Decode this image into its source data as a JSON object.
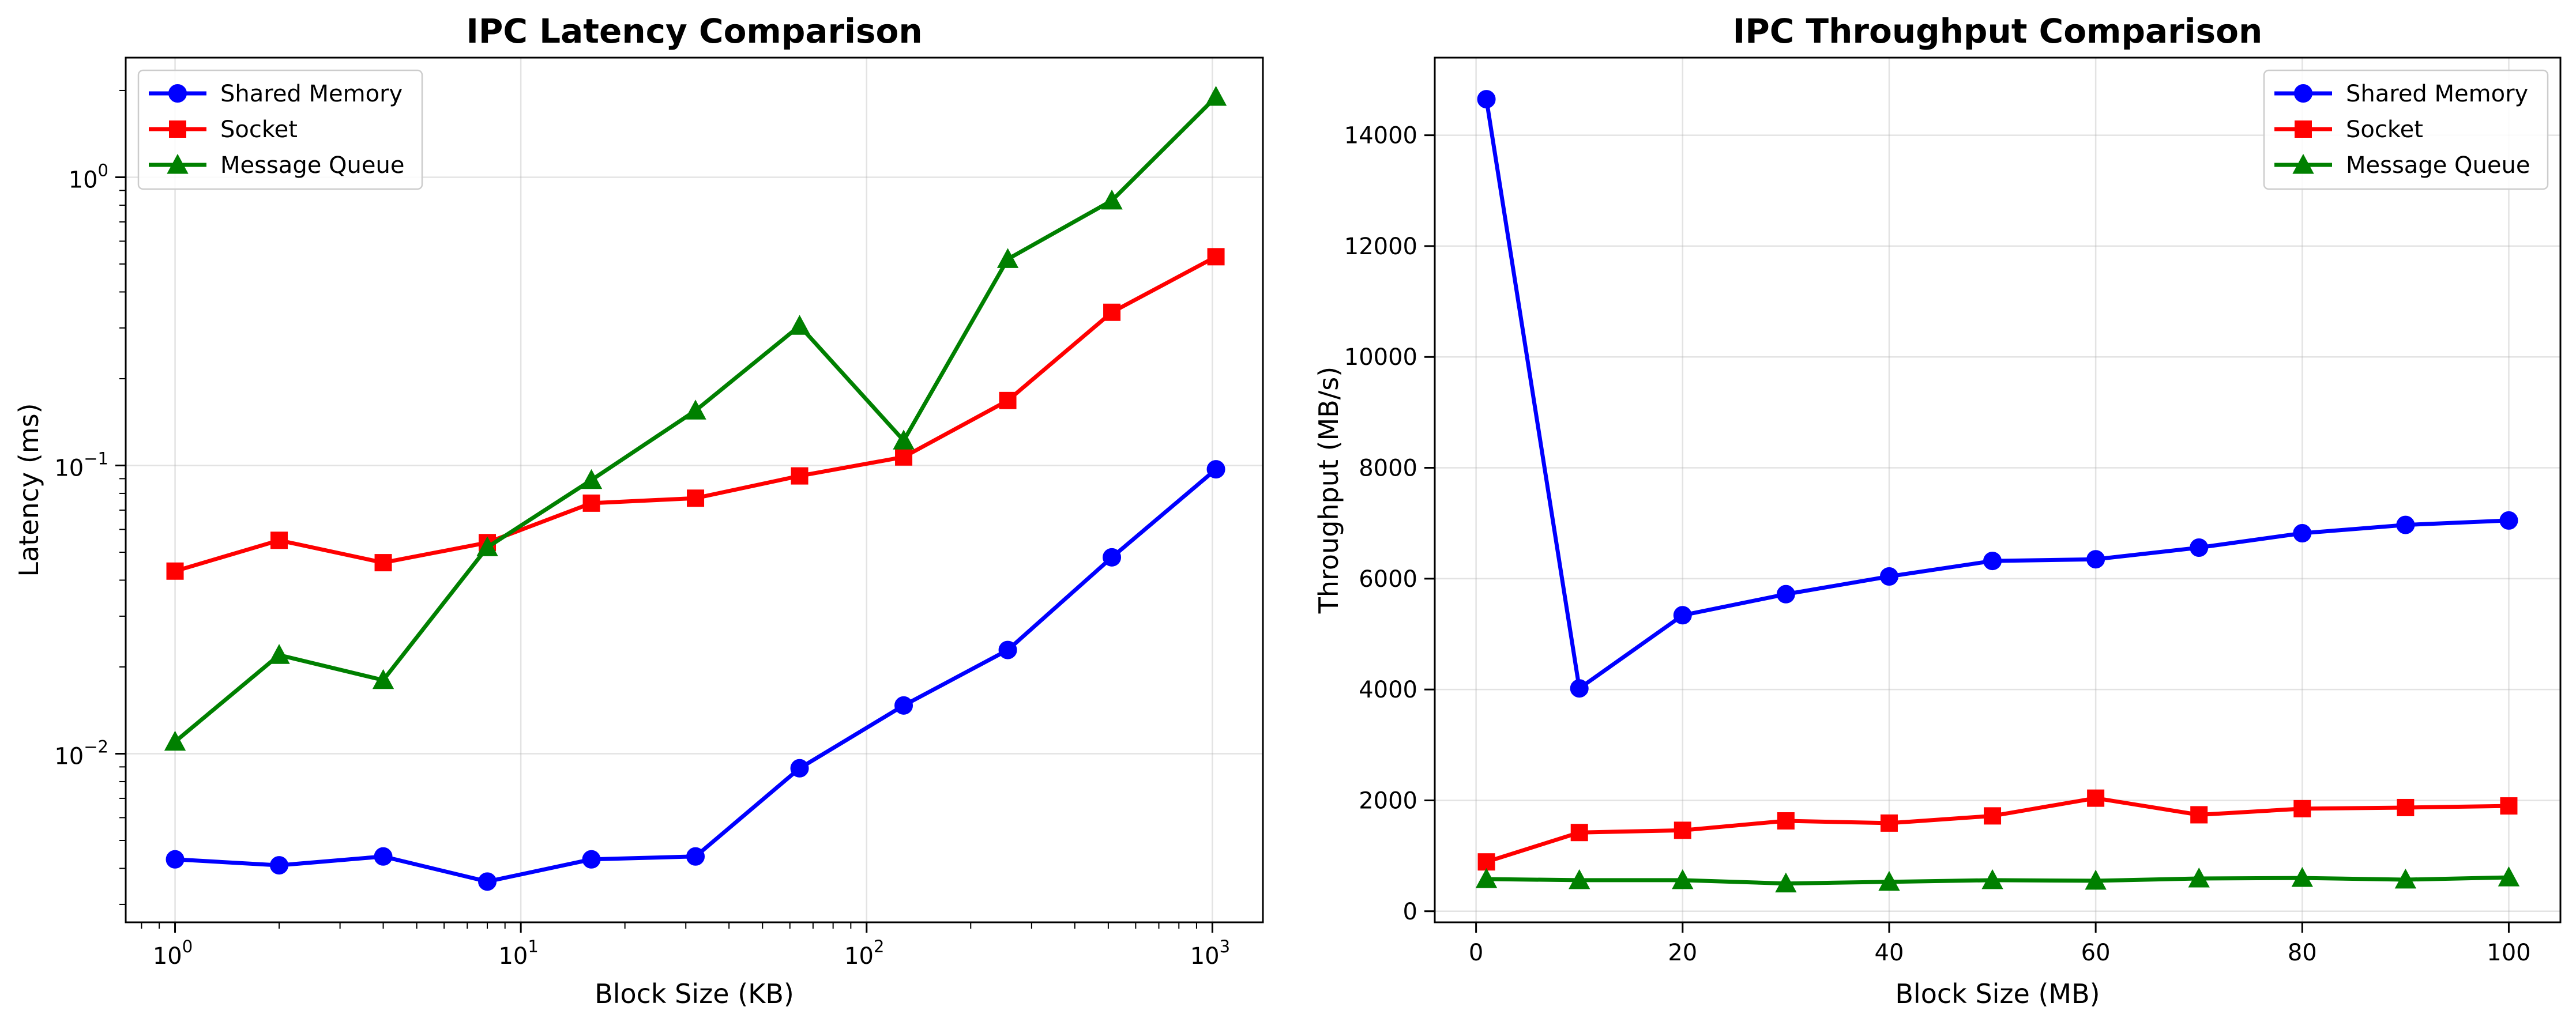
{
  "figure": {
    "background": "#ffffff"
  },
  "chart_data": [
    {
      "type": "line",
      "title": "IPC Latency Comparison",
      "xlabel": "Block Size (KB)",
      "ylabel": "Latency (ms)",
      "xscale": "log",
      "yscale": "log",
      "xlim": [
        0.72,
        1400
      ],
      "ylim": [
        0.0026,
        2.6
      ],
      "grid": true,
      "legend_position": "top-left",
      "x": [
        1,
        2,
        4,
        8,
        16,
        32,
        64,
        128,
        256,
        512,
        1024
      ],
      "xticks": [
        {
          "value": 1,
          "base": "10",
          "exp": "0"
        },
        {
          "value": 10,
          "base": "10",
          "exp": "1"
        },
        {
          "value": 100,
          "base": "10",
          "exp": "2"
        },
        {
          "value": 1000,
          "base": "10",
          "exp": "3"
        }
      ],
      "yticks": [
        {
          "value": 0.01,
          "base": "10",
          "exp": "−2"
        },
        {
          "value": 0.1,
          "base": "10",
          "exp": "−1"
        },
        {
          "value": 1,
          "base": "10",
          "exp": "0"
        }
      ],
      "series": [
        {
          "name": "Shared Memory",
          "color": "#0000ff",
          "marker": "circle",
          "values": [
            0.0043,
            0.0041,
            0.0044,
            0.0036,
            0.0043,
            0.0044,
            0.0089,
            0.0147,
            0.0229,
            0.048,
            0.097
          ]
        },
        {
          "name": "Socket",
          "color": "#ff0000",
          "marker": "square",
          "values": [
            0.043,
            0.055,
            0.046,
            0.054,
            0.074,
            0.077,
            0.092,
            0.107,
            0.168,
            0.34,
            0.53
          ]
        },
        {
          "name": "Message Queue",
          "color": "#008000",
          "marker": "triangle",
          "values": [
            0.011,
            0.022,
            0.018,
            0.052,
            0.089,
            0.155,
            0.305,
            0.122,
            0.52,
            0.83,
            1.9
          ]
        }
      ]
    },
    {
      "type": "line",
      "title": "IPC Throughput Comparison",
      "xlabel": "Block Size (MB)",
      "ylabel": "Throughput (MB/s)",
      "xscale": "linear",
      "yscale": "linear",
      "xlim": [
        -4,
        105
      ],
      "ylim": [
        -200,
        15400
      ],
      "grid": true,
      "legend_position": "top-right",
      "x": [
        1,
        10,
        20,
        30,
        40,
        50,
        60,
        70,
        80,
        90,
        100
      ],
      "xticks": [
        0,
        20,
        40,
        60,
        80,
        100
      ],
      "yticks": [
        0,
        2000,
        4000,
        6000,
        8000,
        10000,
        12000,
        14000
      ],
      "series": [
        {
          "name": "Shared Memory",
          "color": "#0000ff",
          "marker": "circle",
          "values": [
            14650,
            4020,
            5340,
            5720,
            6040,
            6320,
            6350,
            6560,
            6820,
            6970,
            7050
          ]
        },
        {
          "name": "Socket",
          "color": "#ff0000",
          "marker": "square",
          "values": [
            890,
            1420,
            1460,
            1630,
            1590,
            1720,
            2040,
            1740,
            1850,
            1870,
            1900
          ]
        },
        {
          "name": "Message Queue",
          "color": "#008000",
          "marker": "triangle",
          "values": [
            580,
            560,
            560,
            500,
            530,
            560,
            550,
            590,
            600,
            570,
            610
          ]
        }
      ]
    }
  ]
}
